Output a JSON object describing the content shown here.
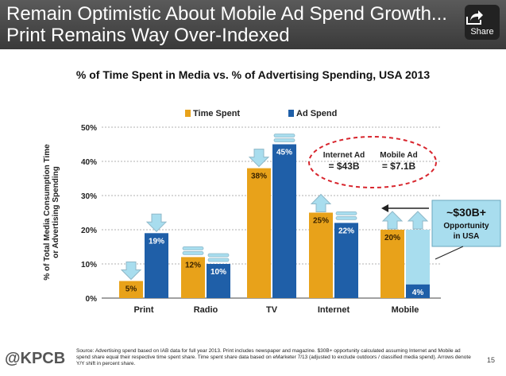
{
  "header": {
    "title_line1": "Remain Optimistic About Mobile Ad Spend Growth...",
    "title_line2": "Print Remains Way Over-Indexed",
    "share_label": "Share"
  },
  "chart_data": {
    "type": "bar",
    "title": "% of Time Spent in Media vs. % of Advertising Spending, USA 2013",
    "ylabel": "% of Total Media Consumption Time or Advertising Spending",
    "ylim": [
      0,
      50
    ],
    "yticks": [
      "0%",
      "10%",
      "20%",
      "30%",
      "40%",
      "50%"
    ],
    "categories": [
      "Print",
      "Radio",
      "TV",
      "Internet",
      "Mobile"
    ],
    "series": [
      {
        "name": "Time Spent",
        "values": [
          5,
          12,
          38,
          25,
          20
        ],
        "labels": [
          "5%",
          "12%",
          "38%",
          "25%",
          "20%"
        ],
        "color": "#E8A21A"
      },
      {
        "name": "Ad Spend",
        "values": [
          19,
          10,
          45,
          22,
          4
        ],
        "labels": [
          "19%",
          "10%",
          "45%",
          "22%",
          "4%"
        ],
        "color": "#1F5FA8"
      }
    ],
    "legend_position": "top",
    "grid": true,
    "annotations": {
      "internet_ad_label": "Internet Ad",
      "internet_ad_value": "= $43B",
      "mobile_ad_label": "Mobile Ad",
      "mobile_ad_value": "= $7.1B",
      "opportunity_amount": "~$30B+",
      "opportunity_line2": "Opportunity",
      "opportunity_line3": "in USA"
    },
    "colors": {
      "opportunity_fill": "#A8DDEE",
      "arrow_fill": "#A8DDEE",
      "oval_stroke": "#D8262E"
    }
  },
  "footer": {
    "logo": "@KPCB",
    "note": "Source: Advertising spend based on IAB data for full year 2013. Print includes newspaper and magazine. $30B+ opportunity calculated assuming Internet and Mobile ad spend share equal their respective time spent share. Time spent share data based on eMarketer 7/13 (adjusted to exclude outdoors / classified media spend). Arrows denote Y/Y shift in percent share.",
    "page_number": "15"
  }
}
